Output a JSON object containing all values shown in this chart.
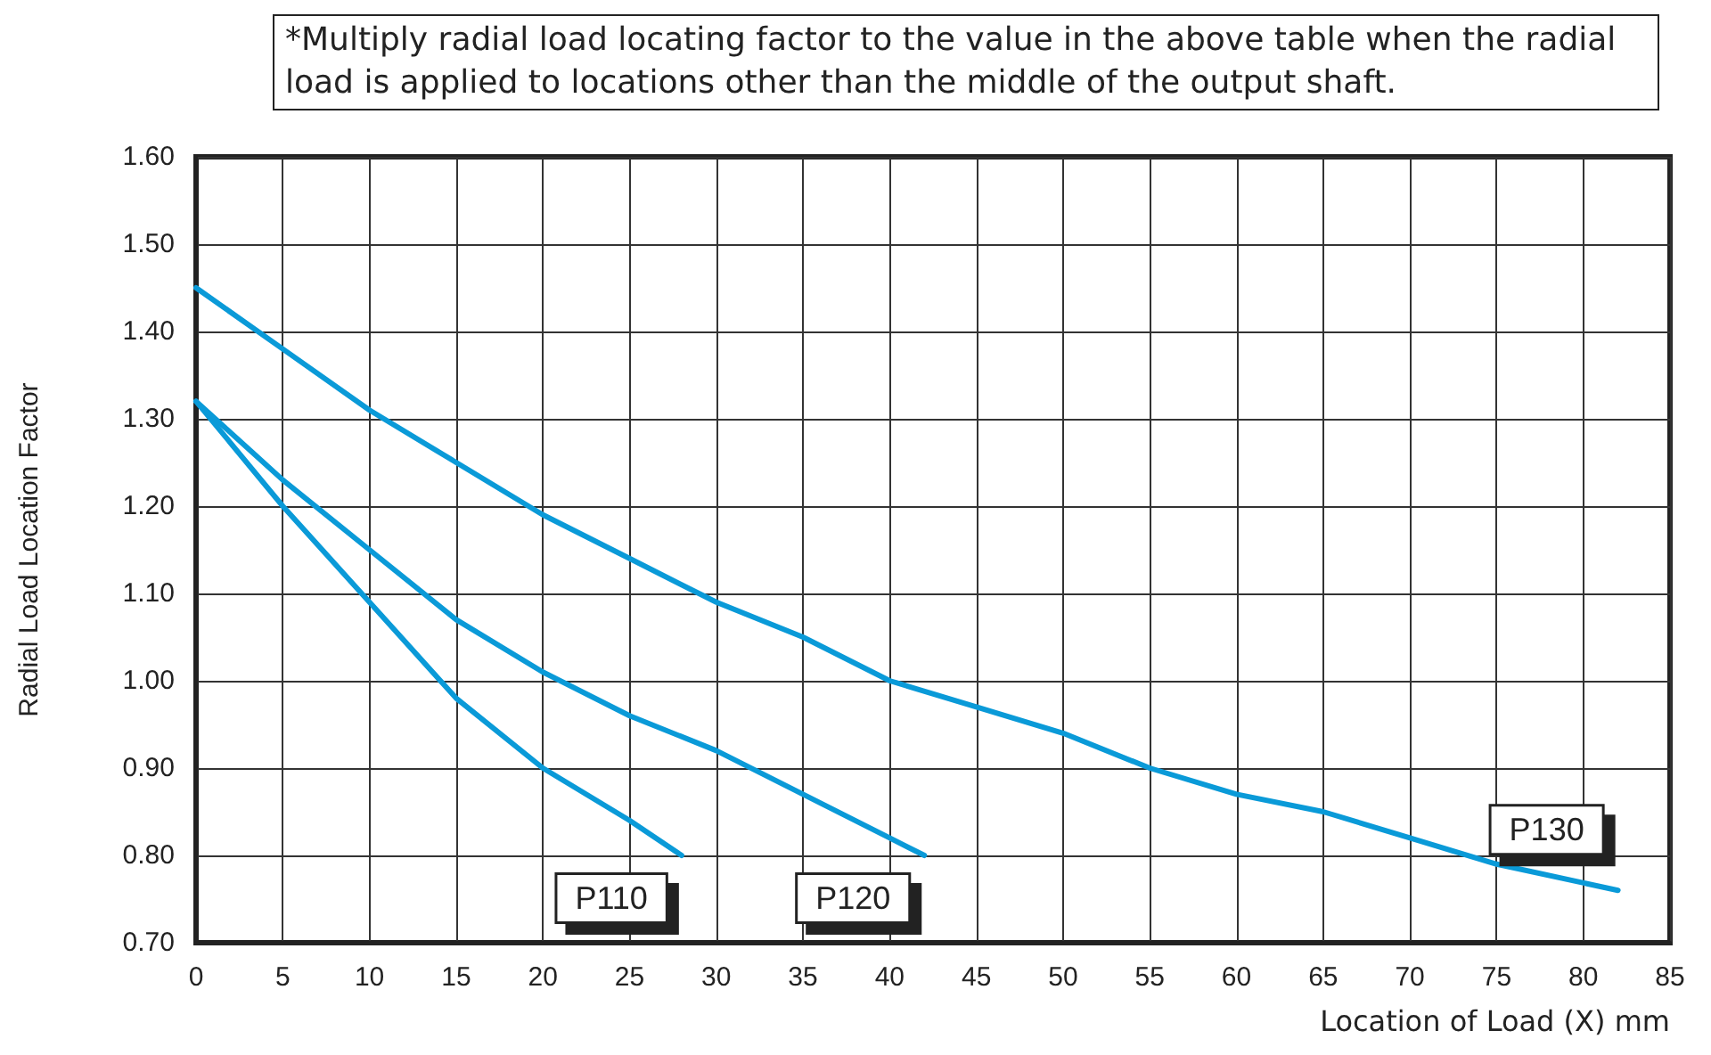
{
  "chart_data": {
    "type": "line",
    "xlabel": "Location of Load (X) mm",
    "ylabel": "Radial Load Location Factor",
    "annotations": [
      "*Multiply radial load locating factor to the value in the above table when the radial load is applied to locations other than the middle of the output shaft."
    ],
    "series": [
      {
        "name": "P110",
        "color": "#0a9ad8",
        "x": [
          0,
          5,
          10,
          15,
          20,
          25,
          28
        ],
        "values": [
          1.32,
          1.2,
          1.09,
          0.98,
          0.9,
          0.84,
          0.8
        ]
      },
      {
        "name": "P120",
        "color": "#0a9ad8",
        "x": [
          0,
          5,
          10,
          15,
          20,
          25,
          30,
          35,
          40,
          42
        ],
        "values": [
          1.32,
          1.23,
          1.15,
          1.07,
          1.01,
          0.96,
          0.92,
          0.87,
          0.82,
          0.8
        ]
      },
      {
        "name": "P130",
        "color": "#0a9ad8",
        "x": [
          0,
          5,
          10,
          15,
          20,
          25,
          30,
          35,
          40,
          45,
          50,
          55,
          60,
          65,
          70,
          75,
          82
        ],
        "values": [
          1.45,
          1.38,
          1.31,
          1.25,
          1.19,
          1.14,
          1.09,
          1.05,
          1.0,
          0.97,
          0.94,
          0.9,
          0.87,
          0.85,
          0.82,
          0.79,
          0.76
        ]
      }
    ],
    "xlim": [
      0,
      85
    ],
    "xticks": [
      0,
      5,
      10,
      15,
      20,
      25,
      30,
      35,
      40,
      45,
      50,
      55,
      60,
      65,
      70,
      75,
      80,
      85
    ],
    "ylim": [
      0.7,
      1.6
    ],
    "yticks": [
      {
        "value": 0.7,
        "label": "0.70"
      },
      {
        "value": 0.8,
        "label": "0.80"
      },
      {
        "value": 0.9,
        "label": "0.90"
      },
      {
        "value": 1.0,
        "label": "1.00"
      },
      {
        "value": 1.1,
        "label": "1.10"
      },
      {
        "value": 1.2,
        "label": "1.20"
      },
      {
        "value": 1.3,
        "label": "1.30"
      },
      {
        "value": 1.4,
        "label": "1.40"
      },
      {
        "value": 1.5,
        "label": "1.50"
      },
      {
        "value": 1.6,
        "label": "1.60"
      }
    ],
    "grid": true,
    "marker": "none",
    "line_style": "solid",
    "legend": false
  }
}
